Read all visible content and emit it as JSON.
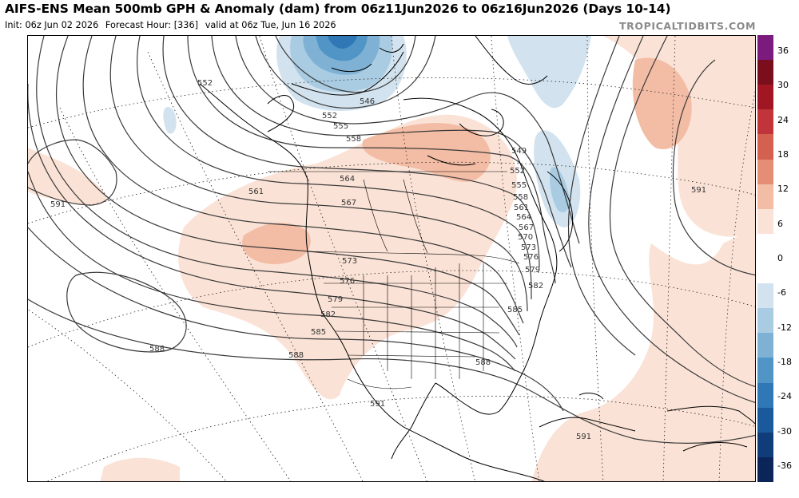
{
  "title": "AIFS-ENS Mean 500mb GPH & Anomaly (dam) from 06z11Jun2026 to 06z16Jun2026 (Days 10-14)",
  "subtitle": {
    "init": "Init: 06z Jun 02 2026",
    "forecast_hour": "Forecast Hour: [336]",
    "valid": "valid at 06z Tue, Jun 16 2026"
  },
  "site": "TROPICALTIDBITS.COM",
  "colorbar": {
    "ticks": [
      "36",
      "30",
      "24",
      "18",
      "12",
      "6",
      "0",
      "-6",
      "-12",
      "-18",
      "-24",
      "-30",
      "-36"
    ],
    "colors": [
      "#7a1b7d",
      "#7a0e1c",
      "#a01622",
      "#c1343a",
      "#d46050",
      "#e48e76",
      "#f3bca4",
      "#fbe2d6",
      "#ffffff",
      "#ffffff",
      "#d2e3ef",
      "#a9cce2",
      "#7eb1d4",
      "#5095c6",
      "#2f78b5",
      "#1a5a9c",
      "#103d7a",
      "#0c2558"
    ]
  },
  "contours": {
    "labels": [
      {
        "id": "c546",
        "text": "546"
      },
      {
        "id": "c549",
        "text": "549"
      },
      {
        "id": "c552a",
        "text": "552"
      },
      {
        "id": "c552b",
        "text": "552"
      },
      {
        "id": "c552c",
        "text": "552"
      },
      {
        "id": "c555a",
        "text": "555"
      },
      {
        "id": "c555b",
        "text": "555"
      },
      {
        "id": "c558a",
        "text": "558"
      },
      {
        "id": "c558b",
        "text": "558"
      },
      {
        "id": "c561a",
        "text": "561"
      },
      {
        "id": "c561b",
        "text": "561"
      },
      {
        "id": "c564a",
        "text": "564"
      },
      {
        "id": "c564b",
        "text": "564"
      },
      {
        "id": "c567a",
        "text": "567"
      },
      {
        "id": "c567b",
        "text": "567"
      },
      {
        "id": "c570",
        "text": "570"
      },
      {
        "id": "c573a",
        "text": "573"
      },
      {
        "id": "c573b",
        "text": "573"
      },
      {
        "id": "c576a",
        "text": "576"
      },
      {
        "id": "c576b",
        "text": "576"
      },
      {
        "id": "c579a",
        "text": "579"
      },
      {
        "id": "c579b",
        "text": "579"
      },
      {
        "id": "c582a",
        "text": "582"
      },
      {
        "id": "c582b",
        "text": "582"
      },
      {
        "id": "c585a",
        "text": "585"
      },
      {
        "id": "c585b",
        "text": "585"
      },
      {
        "id": "c588a",
        "text": "588"
      },
      {
        "id": "c588b",
        "text": "588"
      },
      {
        "id": "c588c",
        "text": "588"
      },
      {
        "id": "c591a",
        "text": "591"
      },
      {
        "id": "c591b",
        "text": "591"
      },
      {
        "id": "c591c",
        "text": "591"
      },
      {
        "id": "c591d",
        "text": "591"
      }
    ]
  }
}
